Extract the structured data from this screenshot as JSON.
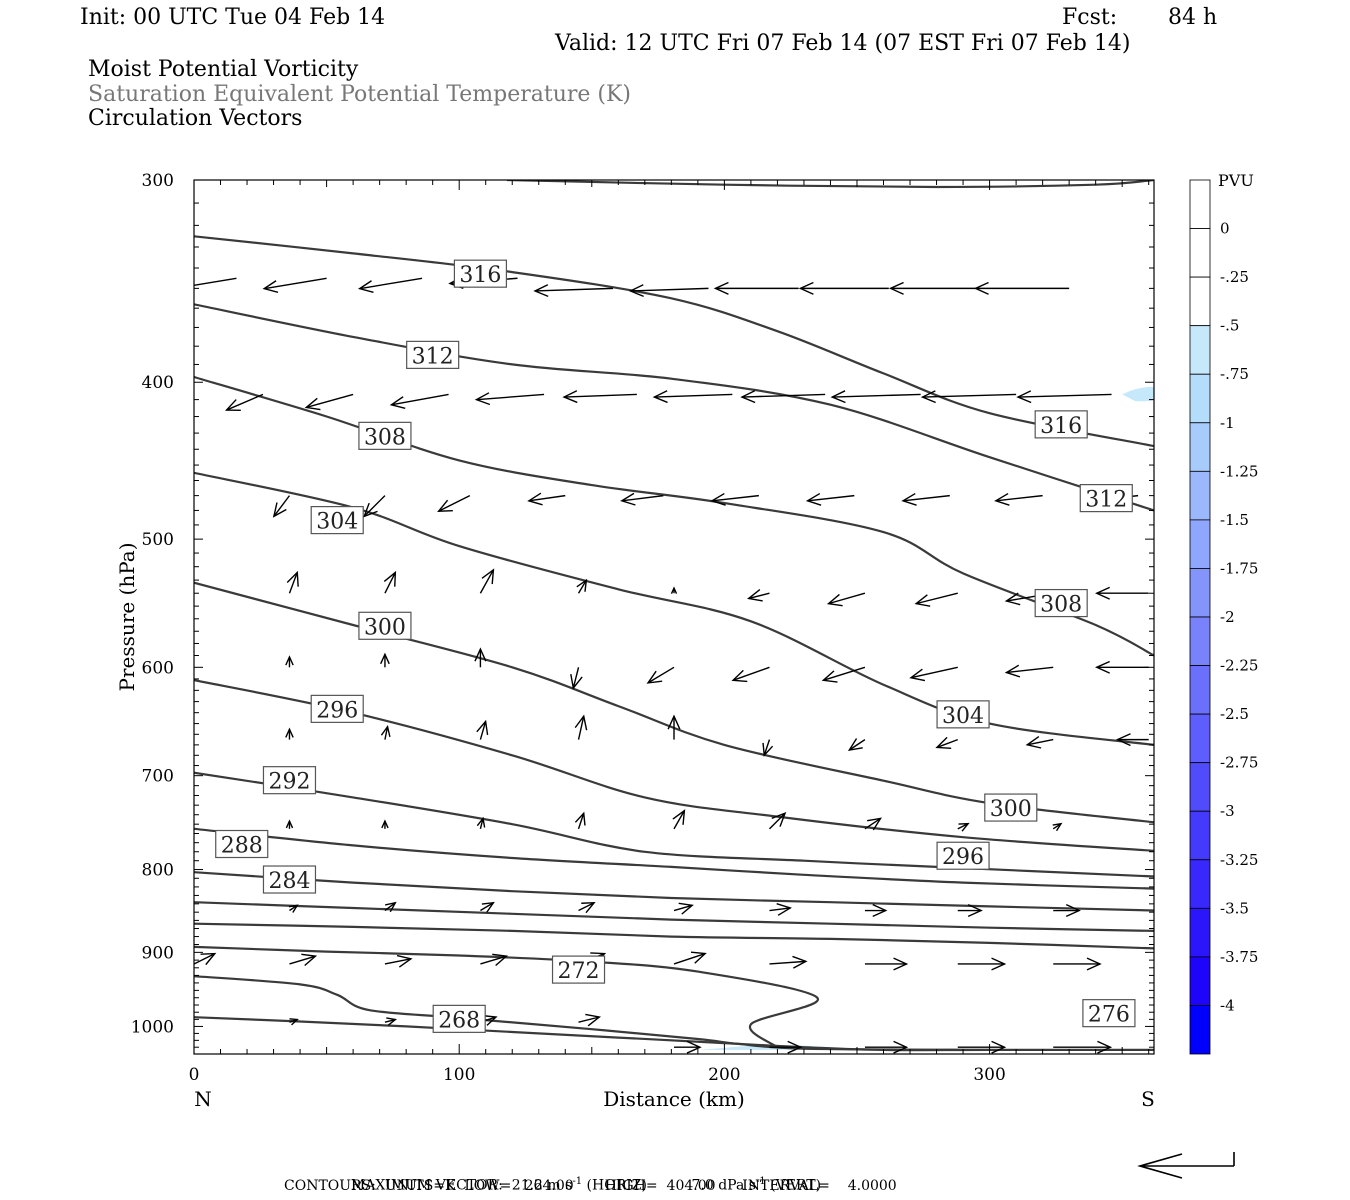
{
  "header": {
    "init": "Init: 00 UTC Tue 04 Feb 14",
    "fcst_label": "Fcst:",
    "fcst_value": "84 h",
    "valid": "Valid: 12 UTC Fri 07 Feb 14 (07 EST Fri 07 Feb 14)",
    "fields": [
      "Moist Potential Vorticity",
      "Saturation Equivalent Potential Temperature (K)",
      "Circulation Vectors"
    ]
  },
  "colors": {
    "contour": "#3a3a3a",
    "field2_text": "#777777",
    "pv_scale": [
      "#ffffff",
      "#ffffff",
      "#c6e8fb",
      "#b4dcfb",
      "#a7cbfb",
      "#9ab8fb",
      "#8ea6fb",
      "#8394fb",
      "#7782fb",
      "#6a70fb",
      "#5d5efb",
      "#504cfb",
      "#443afb",
      "#3828fb",
      "#2b16fb",
      "#1f04fb",
      "#0000ff"
    ]
  },
  "chart_data": {
    "type": "cross-section",
    "xlabel": "Distance (km)",
    "ylabel": "Pressure (hPa)",
    "xlim": [
      0,
      362
    ],
    "ylim": [
      1040,
      300
    ],
    "y_log_scale": true,
    "x_ticks": [
      "0",
      "100",
      "200",
      "300"
    ],
    "y_ticks": [
      "300",
      "400",
      "500",
      "600",
      "700",
      "800",
      "900",
      "1000"
    ],
    "end_labels": {
      "left": "N",
      "right": "S"
    },
    "colorbar": {
      "title": "PVU",
      "labels": [
        "0",
        "-.25",
        "-.5",
        "-.75",
        "-1",
        "-1.25",
        "-1.5",
        "-1.75",
        "-2",
        "-2.25",
        "-2.5",
        "-2.75",
        "-3",
        "-3.25",
        "-3.5",
        "-3.75",
        "-4"
      ]
    },
    "contours": [
      {
        "value": 264,
        "labeled": false,
        "points": [
          [
            0,
            987
          ],
          [
            40,
            993
          ],
          [
            80,
            1000
          ],
          [
            120,
            1008
          ],
          [
            160,
            1016
          ],
          [
            200,
            1024
          ],
          [
            230,
            1030
          ],
          [
            260,
            1034
          ],
          [
            300,
            1034
          ],
          [
            362,
            1034
          ]
        ]
      },
      {
        "value": 268,
        "label": "268",
        "label_at": [
          100,
          990
        ],
        "points": [
          [
            0,
            931
          ],
          [
            40,
            942
          ],
          [
            54,
            956
          ],
          [
            66,
            977
          ],
          [
            100,
            988
          ],
          [
            150,
            1004
          ],
          [
            190,
            1018
          ],
          [
            205,
            1025
          ],
          [
            230,
            1032
          ],
          [
            300,
            1034
          ]
        ]
      },
      {
        "value": 272,
        "label": "272",
        "label_at": [
          145,
          923
        ],
        "points": [
          [
            0,
            893
          ],
          [
            50,
            899
          ],
          [
            100,
            904
          ],
          [
            150,
            912
          ],
          [
            190,
            925
          ],
          [
            235,
            960
          ],
          [
            210,
            997
          ],
          [
            220,
            1030
          ]
        ]
      },
      {
        "value": 276,
        "label": "276",
        "label_at": [
          345,
          982
        ],
        "points": [
          [
            0,
            864
          ],
          [
            60,
            868
          ],
          [
            120,
            873
          ],
          [
            180,
            880
          ],
          [
            240,
            883
          ],
          [
            300,
            888
          ],
          [
            362,
            895
          ]
        ]
      },
      {
        "value": 280,
        "labeled": false,
        "points": [
          [
            0,
            838
          ],
          [
            60,
            845
          ],
          [
            120,
            852
          ],
          [
            180,
            859
          ],
          [
            240,
            864
          ],
          [
            300,
            869
          ],
          [
            362,
            873
          ]
        ]
      },
      {
        "value": 284,
        "label": "284",
        "label_at": [
          36,
          812
        ],
        "points": [
          [
            0,
            803
          ],
          [
            60,
            815
          ],
          [
            120,
            825
          ],
          [
            180,
            833
          ],
          [
            240,
            838
          ],
          [
            300,
            843
          ],
          [
            362,
            848
          ]
        ]
      },
      {
        "value": 288,
        "label": "288",
        "label_at": [
          18,
          772
        ],
        "points": [
          [
            0,
            755
          ],
          [
            60,
            773
          ],
          [
            120,
            787
          ],
          [
            180,
            797
          ],
          [
            230,
            806
          ],
          [
            290,
            815
          ],
          [
            362,
            822
          ]
        ]
      },
      {
        "value": 292,
        "label": "292",
        "label_at": [
          36,
          705
        ],
        "points": [
          [
            0,
            697
          ],
          [
            60,
            722
          ],
          [
            120,
            750
          ],
          [
            170,
            780
          ],
          [
            230,
            790
          ],
          [
            280,
            797
          ],
          [
            362,
            808
          ]
        ]
      },
      {
        "value": 296,
        "label": "296",
        "label_at": [
          54,
          637
        ],
        "points": [
          [
            0,
            611
          ],
          [
            60,
            640
          ],
          [
            120,
            680
          ],
          [
            170,
            722
          ],
          [
            220,
            742
          ],
          [
            290,
            764
          ],
          [
            362,
            779
          ]
        ]
      },
      {
        "value": 300,
        "label": "300",
        "label_at": [
          72,
          566
        ],
        "points": [
          [
            0,
            532
          ],
          [
            60,
            565
          ],
          [
            120,
            600
          ],
          [
            160,
            634
          ],
          [
            200,
            670
          ],
          [
            260,
            705
          ],
          [
            300,
            728
          ],
          [
            362,
            748
          ]
        ]
      },
      {
        "value": 304,
        "label": "304",
        "label_at": [
          54,
          487
        ],
        "points": [
          [
            0,
            455
          ],
          [
            60,
            478
          ],
          [
            100,
            505
          ],
          [
            160,
            537
          ],
          [
            210,
            562
          ],
          [
            260,
            615
          ],
          [
            300,
            650
          ],
          [
            362,
            670
          ]
        ]
      },
      {
        "value": 308,
        "label": "308",
        "label_at": [
          72,
          432
        ],
        "points": [
          [
            0,
            397
          ],
          [
            50,
            420
          ],
          [
            100,
            447
          ],
          [
            150,
            463
          ],
          [
            200,
            475
          ],
          [
            260,
            495
          ],
          [
            290,
            525
          ],
          [
            340,
            565
          ],
          [
            362,
            590
          ]
        ]
      },
      {
        "value": 312,
        "label": "312",
        "label_at": [
          90,
          385
        ],
        "points": [
          [
            0,
            358
          ],
          [
            60,
            375
          ],
          [
            120,
            390
          ],
          [
            180,
            398
          ],
          [
            240,
            413
          ],
          [
            300,
            445
          ],
          [
            362,
            480
          ]
        ]
      },
      {
        "value": 316,
        "label": "316",
        "label_at": [
          108,
          343
        ],
        "points": [
          [
            0,
            325
          ],
          [
            60,
            333
          ],
          [
            120,
            342
          ],
          [
            180,
            355
          ],
          [
            220,
            372
          ],
          [
            260,
            395
          ],
          [
            300,
            418
          ],
          [
            362,
            438
          ]
        ]
      },
      {
        "value": 320,
        "labeled": false,
        "points": [
          [
            118,
            300
          ],
          [
            200,
            302
          ],
          [
            280,
            303
          ],
          [
            340,
            302
          ],
          [
            362,
            300
          ]
        ]
      }
    ],
    "extra_labels": [
      {
        "text": "316",
        "at": [
          327,
          425
        ]
      },
      {
        "text": "312",
        "at": [
          344,
          472
        ]
      },
      {
        "text": "308",
        "at": [
          327,
          548
        ]
      },
      {
        "text": "304",
        "at": [
          290,
          642
        ]
      },
      {
        "text": "300",
        "at": [
          308,
          733
        ]
      },
      {
        "text": "296",
        "at": [
          290,
          785
        ]
      }
    ],
    "pv_shading": [
      {
        "level": -0.25,
        "points": [
          [
            190,
            1034
          ],
          [
            200,
            1031
          ],
          [
            210,
            1028
          ],
          [
            225,
            1027
          ],
          [
            240,
            1030
          ],
          [
            250,
            1034
          ]
        ]
      },
      {
        "level": -0.25,
        "points": [
          [
            350,
            407
          ],
          [
            355,
            404
          ],
          [
            362,
            403
          ],
          [
            362,
            410
          ],
          [
            355,
            411
          ]
        ]
      }
    ],
    "vectors": [
      [
        16,
        345,
        24,
        -4
      ],
      [
        50,
        345,
        24,
        -4
      ],
      [
        86,
        345,
        24,
        -4
      ],
      [
        122,
        345,
        26,
        -2
      ],
      [
        158,
        350,
        30,
        -1
      ],
      [
        194,
        350,
        30,
        -1
      ],
      [
        228,
        350,
        32,
        0
      ],
      [
        262,
        350,
        34,
        0
      ],
      [
        296,
        350,
        34,
        0
      ],
      [
        330,
        350,
        36,
        0
      ],
      [
        26,
        407,
        14,
        -6
      ],
      [
        60,
        407,
        18,
        -5
      ],
      [
        96,
        407,
        22,
        -4
      ],
      [
        132,
        407,
        26,
        -2
      ],
      [
        167,
        407,
        28,
        -1
      ],
      [
        203,
        407,
        30,
        -1
      ],
      [
        238,
        407,
        32,
        -1
      ],
      [
        274,
        407,
        34,
        -1
      ],
      [
        310,
        407,
        36,
        -1
      ],
      [
        346,
        407,
        36,
        -1
      ],
      [
        36,
        470,
        6,
        -8
      ],
      [
        72,
        470,
        8,
        -8
      ],
      [
        104,
        470,
        12,
        -6
      ],
      [
        140,
        470,
        14,
        -2
      ],
      [
        177,
        470,
        16,
        -2
      ],
      [
        213,
        470,
        18,
        -2
      ],
      [
        249,
        470,
        18,
        -2
      ],
      [
        285,
        470,
        18,
        -2
      ],
      [
        320,
        470,
        18,
        -2
      ],
      [
        356,
        470,
        18,
        -2
      ],
      [
        36,
        540,
        -3,
        8
      ],
      [
        72,
        540,
        -4,
        8
      ],
      [
        108,
        540,
        -5,
        9
      ],
      [
        145,
        540,
        -3,
        5
      ],
      [
        181,
        540,
        0,
        2
      ],
      [
        217,
        540,
        8,
        -2
      ],
      [
        253,
        540,
        14,
        -4
      ],
      [
        288,
        540,
        16,
        -4
      ],
      [
        324,
        540,
        18,
        -3
      ],
      [
        360,
        540,
        20,
        0
      ],
      [
        36,
        600,
        0,
        4
      ],
      [
        72,
        600,
        0,
        5
      ],
      [
        108,
        600,
        0,
        7
      ],
      [
        145,
        600,
        2,
        -8
      ],
      [
        181,
        600,
        10,
        -6
      ],
      [
        217,
        600,
        14,
        -5
      ],
      [
        253,
        600,
        16,
        -5
      ],
      [
        288,
        600,
        18,
        -4
      ],
      [
        324,
        600,
        18,
        -2
      ],
      [
        360,
        600,
        20,
        0
      ],
      [
        36,
        665,
        0,
        4
      ],
      [
        72,
        665,
        -1,
        5
      ],
      [
        108,
        665,
        -2,
        7
      ],
      [
        145,
        665,
        -2,
        9
      ],
      [
        181,
        665,
        0,
        9
      ],
      [
        217,
        665,
        2,
        -6
      ],
      [
        253,
        665,
        6,
        -4
      ],
      [
        288,
        665,
        8,
        -3
      ],
      [
        324,
        665,
        10,
        -2
      ],
      [
        360,
        665,
        12,
        0
      ],
      [
        36,
        755,
        0,
        3
      ],
      [
        72,
        755,
        0,
        3
      ],
      [
        108,
        755,
        -1,
        4
      ],
      [
        145,
        755,
        -2,
        6
      ],
      [
        181,
        755,
        -4,
        7
      ],
      [
        217,
        755,
        -6,
        6
      ],
      [
        253,
        755,
        -6,
        4
      ],
      [
        288,
        755,
        -4,
        2
      ],
      [
        324,
        755,
        -3,
        2
      ],
      [
        36,
        848,
        -3,
        2
      ],
      [
        72,
        848,
        -4,
        3
      ],
      [
        108,
        848,
        -5,
        3
      ],
      [
        145,
        848,
        -6,
        3
      ],
      [
        181,
        848,
        -7,
        2
      ],
      [
        217,
        848,
        -8,
        1
      ],
      [
        253,
        848,
        -8,
        0
      ],
      [
        288,
        848,
        -9,
        0
      ],
      [
        324,
        848,
        -10,
        0
      ],
      [
        0,
        915,
        -8,
        4
      ],
      [
        36,
        915,
        -10,
        3
      ],
      [
        72,
        915,
        -10,
        2
      ],
      [
        108,
        915,
        -10,
        3
      ],
      [
        145,
        915,
        -10,
        4
      ],
      [
        181,
        915,
        -12,
        4
      ],
      [
        217,
        915,
        -14,
        1
      ],
      [
        253,
        915,
        -16,
        0
      ],
      [
        288,
        915,
        -18,
        0
      ],
      [
        324,
        915,
        -18,
        0
      ],
      [
        36,
        994,
        -3,
        1
      ],
      [
        72,
        994,
        -4,
        1
      ],
      [
        108,
        994,
        -6,
        2
      ],
      [
        145,
        994,
        -8,
        2
      ],
      [
        181,
        1030,
        -10,
        0
      ],
      [
        217,
        1030,
        -12,
        0
      ],
      [
        253,
        1030,
        -16,
        0
      ],
      [
        288,
        1030,
        -18,
        0
      ],
      [
        324,
        1030,
        -22,
        0
      ]
    ]
  },
  "footer": {
    "max_vector_label": "MAXIMUM VECTOR:",
    "horiz_value": "21.2",
    "horiz_unit_base": "m s",
    "horiz_unit_exp": "-1",
    "horiz_tag": "(HORIZ)",
    "vert_value": "7.0",
    "vert_unit_base": "dPa s",
    "vert_unit_exp": "-1",
    "vert_tag": "(VERT)",
    "contours_line": "CONTOURS:  UNITS=K  LOW=   264.00       HIGH=  404.00      INTERVAL=    4.0000"
  }
}
